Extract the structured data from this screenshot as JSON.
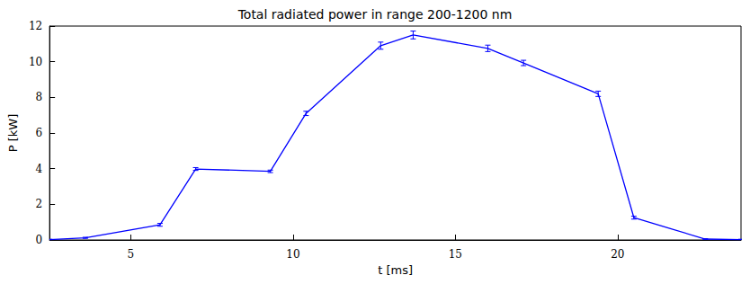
{
  "chart_data": {
    "type": "line",
    "title": "Total radiated power in range 200-1200 nm",
    "x_label": "t [ms]",
    "y_label": "P [kW]",
    "x": [
      2.5,
      3.6,
      5.9,
      7.0,
      9.3,
      10.4,
      12.7,
      13.7,
      16.0,
      17.1,
      19.4,
      20.5,
      22.7,
      23.8
    ],
    "values": [
      0.02,
      0.12,
      0.85,
      3.98,
      3.85,
      7.1,
      10.9,
      11.5,
      10.75,
      9.93,
      8.2,
      1.25,
      0.05,
      0.02
    ],
    "errors": [
      0.02,
      0.03,
      0.08,
      0.08,
      0.07,
      0.12,
      0.2,
      0.22,
      0.18,
      0.15,
      0.15,
      0.08,
      0.02,
      0.02
    ],
    "color": "#0000ff",
    "marker": "none",
    "xlim": [
      2.5,
      23.8
    ],
    "xticks": [
      5,
      10,
      15,
      20
    ],
    "ylim": [
      0,
      12
    ],
    "yticks": [
      0,
      2,
      4,
      6,
      8,
      10,
      12
    ],
    "grid": false
  }
}
